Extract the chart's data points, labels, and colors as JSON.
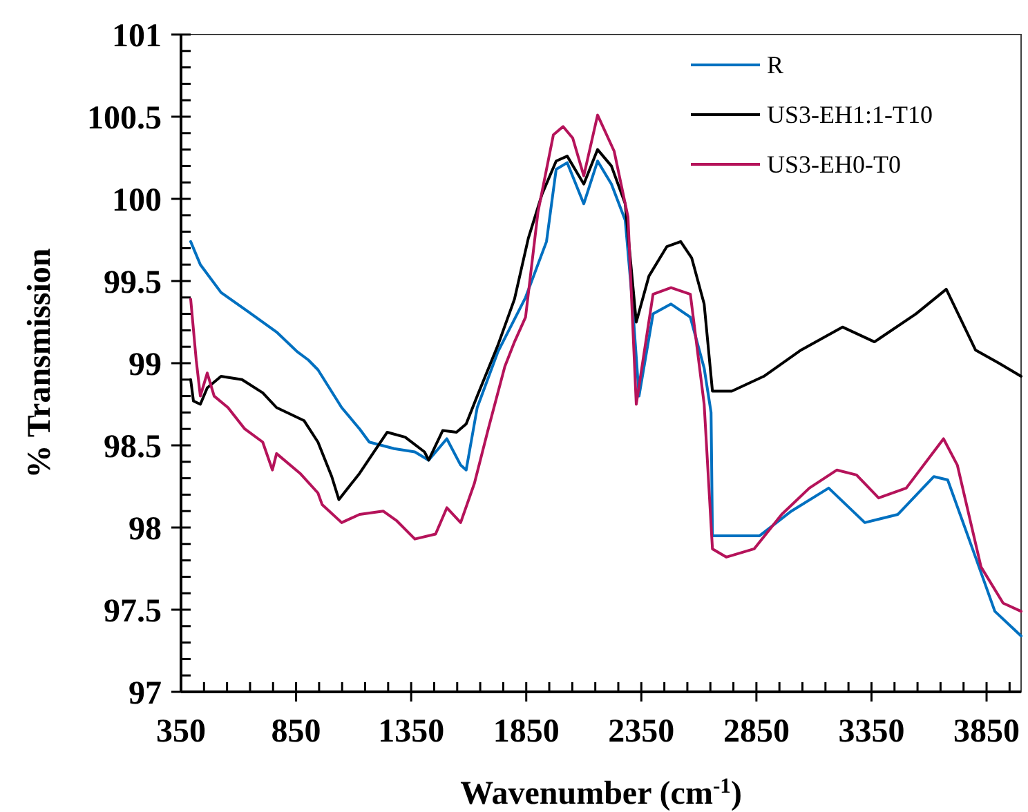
{
  "chart_data": {
    "type": "line",
    "xlabel": "Wavenumber (cm$^{-1}$)",
    "ylabel": "% Transmission",
    "xlim": [
      350,
      4000
    ],
    "ylim": [
      97,
      101
    ],
    "xticks": [
      350,
      {
        "value": 450,
        "label": null
      },
      {
        "value": 550,
        "label": null
      },
      {
        "value": 650,
        "label": null
      },
      {
        "value": 750,
        "label": null
      },
      850,
      {
        "value": 950,
        "label": null
      },
      {
        "value": 1050,
        "label": null
      },
      {
        "value": 1150,
        "label": null
      },
      {
        "value": 1250,
        "label": null
      },
      1350,
      {
        "value": 1450,
        "label": null
      },
      {
        "value": 1550,
        "label": null
      },
      {
        "value": 1650,
        "label": null
      },
      {
        "value": 1750,
        "label": null
      },
      1850,
      {
        "value": 1950,
        "label": null
      },
      {
        "value": 2050,
        "label": null
      },
      {
        "value": 2150,
        "label": null
      },
      {
        "value": 2250,
        "label": null
      },
      2350,
      {
        "value": 2450,
        "label": null
      },
      {
        "value": 2550,
        "label": null
      },
      {
        "value": 2650,
        "label": null
      },
      {
        "value": 2750,
        "label": null
      },
      2850,
      {
        "value": 2950,
        "label": null
      },
      {
        "value": 3050,
        "label": null
      },
      {
        "value": 3150,
        "label": null
      },
      {
        "value": 3250,
        "label": null
      },
      3350,
      {
        "value": 3450,
        "label": null
      },
      {
        "value": 3550,
        "label": null
      },
      {
        "value": 3650,
        "label": null
      },
      {
        "value": 3750,
        "label": null
      },
      3850,
      {
        "value": 3950,
        "label": null
      }
    ],
    "yticks": [
      97,
      {
        "value": 97.1,
        "label": null
      },
      {
        "value": 97.2,
        "label": null
      },
      {
        "value": 97.3,
        "label": null
      },
      {
        "value": 97.4,
        "label": null
      },
      97.5,
      {
        "value": 97.6,
        "label": null
      },
      {
        "value": 97.7,
        "label": null
      },
      {
        "value": 97.8,
        "label": null
      },
      {
        "value": 97.9,
        "label": null
      },
      98,
      {
        "value": 98.1,
        "label": null
      },
      {
        "value": 98.2,
        "label": null
      },
      {
        "value": 98.3,
        "label": null
      },
      {
        "value": 98.4,
        "label": null
      },
      98.5,
      {
        "value": 98.6,
        "label": null
      },
      {
        "value": 98.7,
        "label": null
      },
      {
        "value": 98.8,
        "label": null
      },
      {
        "value": 98.9,
        "label": null
      },
      99,
      {
        "value": 99.1,
        "label": null
      },
      {
        "value": 99.2,
        "label": null
      },
      {
        "value": 99.3,
        "label": null
      },
      {
        "value": 99.4,
        "label": null
      },
      99.5,
      {
        "value": 99.6,
        "label": null
      },
      {
        "value": 99.7,
        "label": null
      },
      {
        "value": 99.8,
        "label": null
      },
      {
        "value": 99.9,
        "label": null
      },
      100,
      {
        "value": 100.1,
        "label": null
      },
      {
        "value": 100.2,
        "label": null
      },
      {
        "value": 100.3,
        "label": null
      },
      {
        "value": 100.4,
        "label": null
      },
      100.5,
      {
        "value": 100.6,
        "label": null
      },
      {
        "value": 100.7,
        "label": null
      },
      {
        "value": 100.8,
        "label": null
      },
      {
        "value": 100.9,
        "label": null
      },
      101
    ],
    "grid": false,
    "legend": "top right",
    "marker": "none",
    "line_style": "solid",
    "series": [
      {
        "name": "R",
        "color": "#0070c0",
        "x": [
          392,
          434,
          524,
          645,
          765,
          855,
          903,
          945,
          1048,
          1126,
          1168,
          1276,
          1366,
          1426,
          1505,
          1565,
          1589,
          1637,
          1727,
          1847,
          1938,
          1980,
          2028,
          2100,
          2160,
          2220,
          2280,
          2310,
          2340,
          2401,
          2479,
          2563,
          2623,
          2653,
          2659,
          2864,
          3002,
          3164,
          3321,
          3465,
          3621,
          3681,
          3802,
          3886,
          4000
        ],
        "values": [
          99.74,
          99.6,
          99.43,
          99.31,
          99.19,
          99.07,
          99.02,
          98.96,
          98.73,
          98.6,
          98.52,
          98.48,
          98.46,
          98.41,
          98.54,
          98.38,
          98.35,
          98.73,
          99.07,
          99.4,
          99.74,
          100.18,
          100.22,
          99.97,
          100.23,
          100.09,
          99.87,
          99.39,
          98.8,
          99.3,
          99.36,
          99.28,
          98.97,
          98.7,
          97.95,
          97.95,
          98.1,
          98.24,
          98.03,
          98.08,
          98.31,
          98.29,
          97.82,
          97.49,
          97.34
        ]
      },
      {
        "name": "US3-EH1:1-T10",
        "color": "#000000",
        "x": [
          392,
          404,
          434,
          464,
          524,
          615,
          705,
          765,
          825,
          885,
          945,
          1005,
          1036,
          1126,
          1246,
          1324,
          1408,
          1426,
          1487,
          1547,
          1589,
          1637,
          1727,
          1799,
          1859,
          1919,
          1980,
          2028,
          2100,
          2160,
          2220,
          2280,
          2328,
          2383,
          2461,
          2521,
          2569,
          2623,
          2659,
          2743,
          2882,
          3044,
          3224,
          3363,
          3543,
          3675,
          3802,
          3904,
          4000
        ],
        "values": [
          98.9,
          98.77,
          98.75,
          98.85,
          98.92,
          98.9,
          98.82,
          98.73,
          98.69,
          98.65,
          98.52,
          98.31,
          98.17,
          98.33,
          98.58,
          98.55,
          98.46,
          98.41,
          98.59,
          98.58,
          98.63,
          98.8,
          99.11,
          99.39,
          99.76,
          100.03,
          100.23,
          100.26,
          100.09,
          100.3,
          100.2,
          99.97,
          99.25,
          99.53,
          99.71,
          99.74,
          99.64,
          99.36,
          98.83,
          98.83,
          98.92,
          99.08,
          99.22,
          99.13,
          99.3,
          99.45,
          99.08,
          99.0,
          98.92
        ]
      },
      {
        "name": "US3-EH0-T0",
        "color": "#b5135a",
        "x": [
          392,
          416,
          434,
          464,
          494,
          554,
          627,
          705,
          747,
          765,
          867,
          945,
          963,
          1048,
          1126,
          1228,
          1288,
          1366,
          1456,
          1505,
          1565,
          1625,
          1685,
          1757,
          1799,
          1847,
          1901,
          1968,
          2010,
          2052,
          2100,
          2160,
          2232,
          2292,
          2328,
          2401,
          2479,
          2563,
          2623,
          2659,
          2719,
          2840,
          2960,
          3080,
          3200,
          3285,
          3381,
          3501,
          3663,
          3723,
          3826,
          3922,
          4000
        ],
        "values": [
          99.39,
          99.02,
          98.8,
          98.94,
          98.8,
          98.73,
          98.6,
          98.52,
          98.35,
          98.45,
          98.33,
          98.21,
          98.14,
          98.03,
          98.08,
          98.1,
          98.04,
          97.93,
          97.96,
          98.12,
          98.03,
          98.27,
          98.6,
          98.98,
          99.13,
          99.28,
          99.92,
          100.39,
          100.44,
          100.37,
          100.14,
          100.51,
          100.29,
          99.89,
          98.75,
          99.42,
          99.46,
          99.42,
          98.75,
          97.87,
          97.82,
          97.87,
          98.08,
          98.24,
          98.35,
          98.32,
          98.18,
          98.24,
          98.54,
          98.38,
          97.76,
          97.54,
          97.49
        ]
      }
    ]
  }
}
